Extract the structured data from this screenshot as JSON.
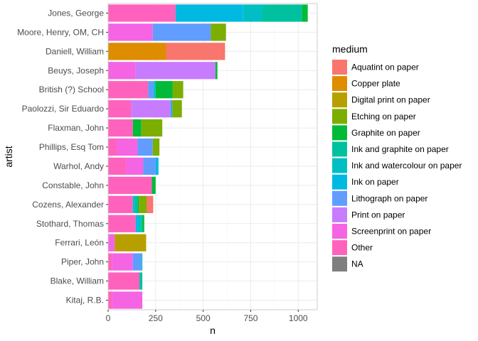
{
  "chart_data": {
    "type": "bar",
    "orientation": "horizontal",
    "stacked": true,
    "xlabel": "n",
    "ylabel": "artist",
    "xlim": [
      0,
      1100
    ],
    "xticks": [
      0,
      250,
      500,
      750,
      1000
    ],
    "grid": true,
    "legend": {
      "title": "medium",
      "position": "right"
    },
    "categories": [
      "Jones, George",
      "Moore, Henry, OM, CH",
      "Daniell, William",
      "Beuys, Joseph",
      "British (?) School",
      "Paolozzi, Sir Eduardo",
      "Flaxman, John",
      "Phillips, Esq Tom",
      "Warhol, Andy",
      "Constable, John",
      "Cozens, Alexander",
      "Stothard, Thomas",
      "Ferrari, León",
      "Piper, John",
      "Blake, William",
      "Kitaj, R.B."
    ],
    "series": [
      {
        "name": "Other",
        "color": "#FF62BC",
        "values": [
          355,
          0,
          0,
          0,
          210,
          120,
          130,
          45,
          95,
          230,
          130,
          145,
          0,
          20,
          165,
          20
        ]
      },
      {
        "name": "Screenprint on paper",
        "color": "#F564E3",
        "values": [
          0,
          235,
          0,
          145,
          0,
          0,
          0,
          110,
          90,
          0,
          0,
          0,
          35,
          110,
          0,
          160
        ]
      },
      {
        "name": "Print on paper",
        "color": "#C77CFF",
        "values": [
          0,
          0,
          0,
          420,
          0,
          210,
          0,
          0,
          0,
          0,
          0,
          0,
          0,
          0,
          0,
          0
        ]
      },
      {
        "name": "Lithograph on paper",
        "color": "#619CFF",
        "values": [
          0,
          305,
          0,
          0,
          30,
          0,
          0,
          80,
          65,
          0,
          0,
          0,
          0,
          45,
          0,
          0
        ]
      },
      {
        "name": "Ink on paper",
        "color": "#00B9E3",
        "values": [
          355,
          0,
          0,
          0,
          0,
          8,
          0,
          0,
          15,
          0,
          0,
          10,
          0,
          0,
          0,
          0
        ]
      },
      {
        "name": "Ink and watercolour on paper",
        "color": "#00BFC4",
        "values": [
          100,
          0,
          0,
          0,
          10,
          0,
          0,
          0,
          0,
          0,
          12,
          20,
          0,
          5,
          0,
          0
        ]
      },
      {
        "name": "Ink and graphite on paper",
        "color": "#00C19F",
        "values": [
          210,
          0,
          0,
          0,
          0,
          0,
          0,
          0,
          0,
          0,
          15,
          5,
          0,
          0,
          15,
          0
        ]
      },
      {
        "name": "Graphite on paper",
        "color": "#00BA38",
        "values": [
          30,
          0,
          0,
          10,
          90,
          0,
          45,
          0,
          0,
          20,
          5,
          10,
          0,
          0,
          0,
          0
        ]
      },
      {
        "name": "Etching on paper",
        "color": "#7CAE00",
        "values": [
          0,
          80,
          0,
          0,
          55,
          50,
          110,
          35,
          0,
          0,
          40,
          0,
          0,
          0,
          0,
          0
        ]
      },
      {
        "name": "Digital print on paper",
        "color": "#B79F00",
        "values": [
          0,
          0,
          0,
          0,
          0,
          0,
          0,
          0,
          0,
          0,
          0,
          0,
          165,
          0,
          0,
          0
        ]
      },
      {
        "name": "Copper plate",
        "color": "#DE8C00",
        "values": [
          0,
          0,
          305,
          0,
          0,
          0,
          0,
          0,
          0,
          0,
          0,
          0,
          0,
          0,
          0,
          0
        ]
      },
      {
        "name": "Aquatint on paper",
        "color": "#F8766D",
        "values": [
          0,
          0,
          310,
          0,
          0,
          0,
          0,
          0,
          0,
          0,
          35,
          0,
          0,
          0,
          0,
          0
        ]
      },
      {
        "name": "NA",
        "color": "#7F7F7F",
        "values": [
          0,
          0,
          0,
          0,
          0,
          0,
          0,
          0,
          0,
          0,
          0,
          0,
          0,
          0,
          0,
          0
        ]
      }
    ],
    "legend_order": [
      "Aquatint on paper",
      "Copper plate",
      "Digital print on paper",
      "Etching on paper",
      "Graphite on paper",
      "Ink and graphite on paper",
      "Ink and watercolour on paper",
      "Ink on paper",
      "Lithograph on paper",
      "Print on paper",
      "Screenprint on paper",
      "Other",
      "NA"
    ],
    "colors": {
      "panel_background": "#FFFFFF",
      "grid_major": "#EBEBEB",
      "grid_minor": "#F5F5F5",
      "panel_border": "#CCCCCC"
    }
  }
}
